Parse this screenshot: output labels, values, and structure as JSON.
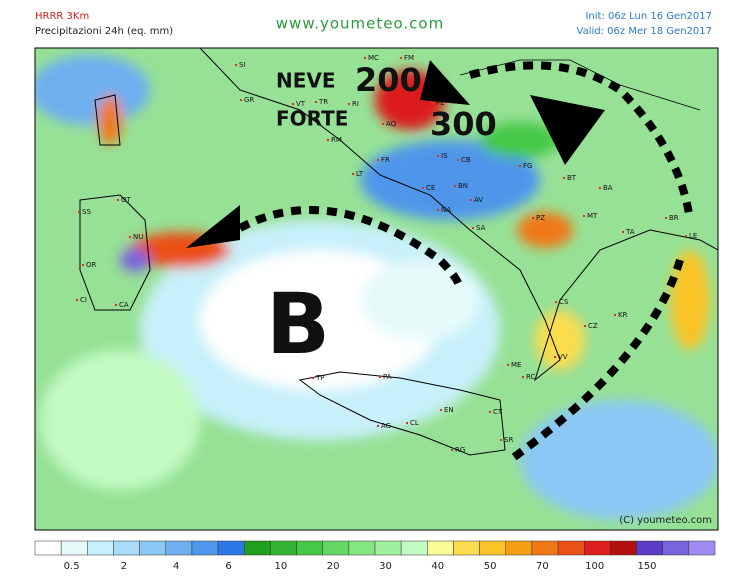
{
  "header": {
    "model": "HRRR 3Km",
    "product": "Precipitazioni 24h (eq. mm)",
    "site": "www.youmeteo.com",
    "init": "Init: 06z Lun 16 Gen2017",
    "valid": "Valid: 06z Mer 18 Gen2017"
  },
  "annotations": {
    "neve": "NEVE",
    "forte": "FORTE",
    "snow_a": "200",
    "snow_b": "300",
    "low": "B"
  },
  "cities": [
    "SI",
    "GR",
    "VT",
    "TR",
    "RI",
    "MC",
    "FM",
    "AQ",
    "PE",
    "RM",
    "IS",
    "CB",
    "FR",
    "LT",
    "CE",
    "BN",
    "FG",
    "BT",
    "BA",
    "NA",
    "AV",
    "SA",
    "PZ",
    "MT",
    "TA",
    "BR",
    "LE",
    "CS",
    "KR",
    "CZ",
    "VV",
    "RC",
    "ME",
    "TP",
    "PA",
    "AG",
    "CL",
    "EN",
    "CT",
    "SR",
    "RG",
    "SS",
    "OT",
    "NU",
    "OR",
    "CI",
    "CA"
  ],
  "copyright": "(C) youmeteo.com",
  "colorbar": {
    "colors": [
      "#ffffff",
      "#e6fafa",
      "#c8f0fa",
      "#aadcfa",
      "#8cc8f5",
      "#6eaff0",
      "#5096eb",
      "#2d78e6",
      "#1ea01e",
      "#32b432",
      "#46c846",
      "#64d764",
      "#82e682",
      "#a0f0a0",
      "#c3fac3",
      "#fafa96",
      "#fadc50",
      "#fac328",
      "#f5a014",
      "#f07814",
      "#eb5014",
      "#dc1e1e",
      "#b40f0f",
      "#5a3cc8",
      "#7864dc",
      "#a08cf0"
    ],
    "labels": [
      0.5,
      2,
      4,
      6,
      10,
      20,
      30,
      40,
      50,
      70,
      100,
      150
    ]
  }
}
